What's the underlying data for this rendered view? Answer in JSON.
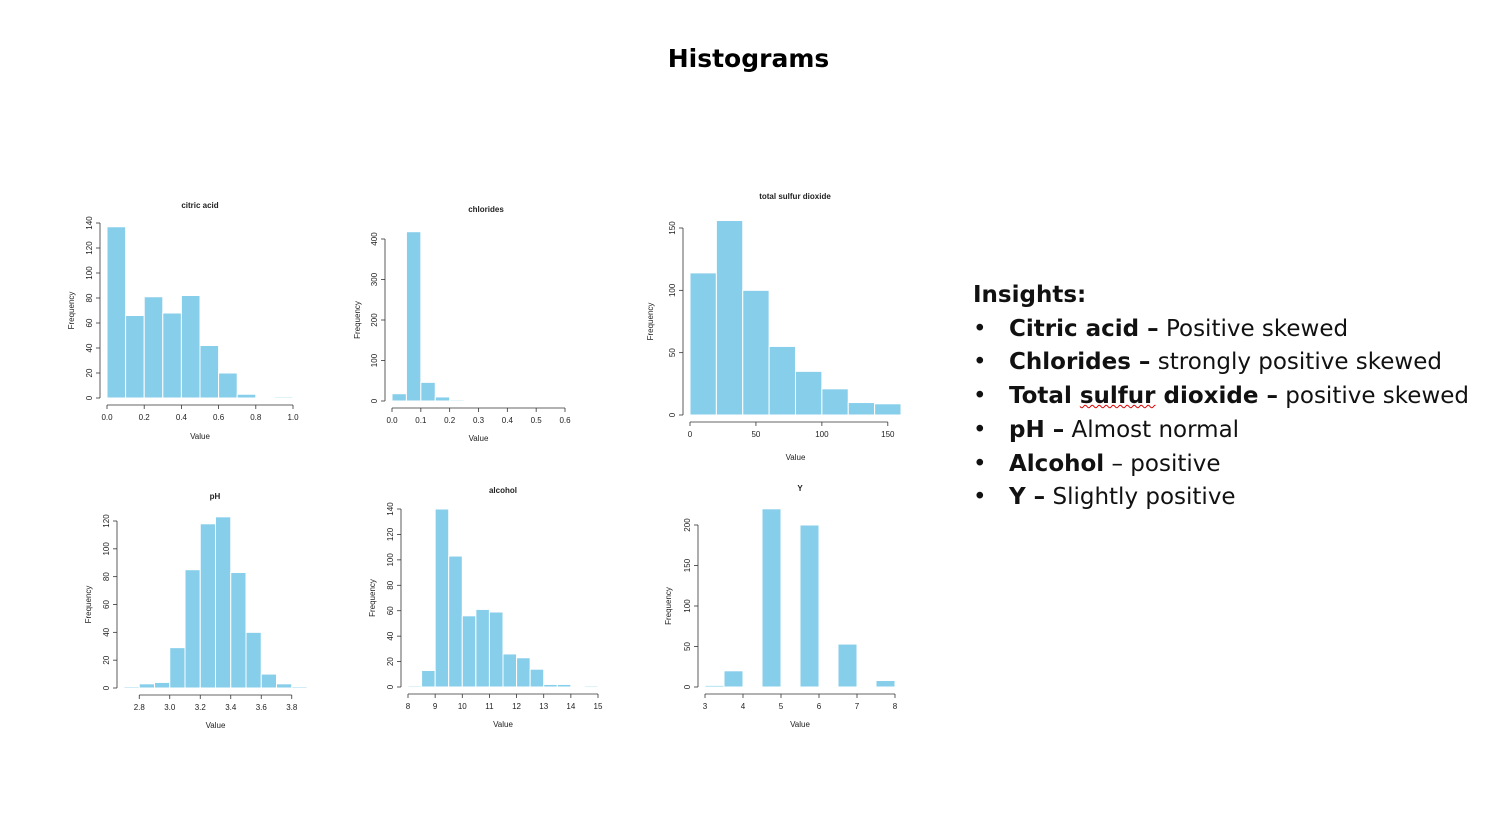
{
  "slide": {
    "title": "Histograms"
  },
  "chart_style": {
    "bar_color": "#87CEEB",
    "bar_edge": "#ffffff",
    "axis_color": "#333333"
  },
  "chart_data": [
    {
      "type": "bar",
      "title": "citric acid",
      "xlabel": "Value",
      "ylabel": "Frequency",
      "bins": [
        [
          0,
          0.1
        ],
        [
          0.1,
          0.2
        ],
        [
          0.2,
          0.3
        ],
        [
          0.3,
          0.4
        ],
        [
          0.4,
          0.5
        ],
        [
          0.5,
          0.6
        ],
        [
          0.6,
          0.7
        ],
        [
          0.7,
          0.8
        ],
        [
          0.8,
          0.9
        ],
        [
          0.9,
          1.0
        ]
      ],
      "values": [
        137,
        66,
        81,
        68,
        82,
        42,
        20,
        3,
        0,
        1
      ],
      "xlim": [
        0,
        1
      ],
      "ylim": [
        0,
        140
      ],
      "xticks": [
        "0.0",
        "0.2",
        "0.4",
        "0.6",
        "0.8",
        "1.0"
      ],
      "yticks": [
        "0",
        "20",
        "40",
        "60",
        "80",
        "100",
        "120",
        "140"
      ]
    },
    {
      "type": "bar",
      "title": "chlorides",
      "xlabel": "Value",
      "ylabel": "Frequency",
      "bins": [
        [
          0,
          0.05
        ],
        [
          0.05,
          0.1
        ],
        [
          0.1,
          0.15
        ],
        [
          0.15,
          0.2
        ],
        [
          0.2,
          0.25
        ],
        [
          0.25,
          0.3
        ],
        [
          0.3,
          0.35
        ],
        [
          0.35,
          0.4
        ],
        [
          0.4,
          0.45
        ],
        [
          0.45,
          0.5
        ],
        [
          0.5,
          0.55
        ],
        [
          0.55,
          0.6
        ]
      ],
      "values": [
        18,
        418,
        46,
        10,
        3,
        0,
        1,
        0,
        0,
        0,
        0,
        0
      ],
      "xlim": [
        0,
        0.6
      ],
      "ylim": [
        0,
        400
      ],
      "xticks": [
        "0.0",
        "0.1",
        "0.2",
        "0.3",
        "0.4",
        "0.5",
        "0.6"
      ],
      "yticks": [
        "0",
        "100",
        "200",
        "300",
        "400"
      ]
    },
    {
      "type": "bar",
      "title": "total sulfur dioxide",
      "xlabel": "Value",
      "ylabel": "Frequency",
      "bins": [
        [
          0,
          20
        ],
        [
          20,
          40
        ],
        [
          40,
          60
        ],
        [
          60,
          80
        ],
        [
          80,
          100
        ],
        [
          100,
          120
        ],
        [
          120,
          140
        ],
        [
          140,
          160
        ]
      ],
      "values": [
        114,
        156,
        100,
        55,
        35,
        21,
        10,
        9
      ],
      "xlim": [
        0,
        160
      ],
      "ylim": [
        0,
        150
      ],
      "xticks": [
        "0",
        "50",
        "100",
        "150"
      ],
      "yticks": [
        "0",
        "50",
        "100",
        "150"
      ]
    },
    {
      "type": "bar",
      "title": "pH",
      "xlabel": "Value",
      "ylabel": "Frequency",
      "bins": [
        [
          2.7,
          2.8
        ],
        [
          2.8,
          2.9
        ],
        [
          2.9,
          3.0
        ],
        [
          3.0,
          3.1
        ],
        [
          3.1,
          3.2
        ],
        [
          3.2,
          3.3
        ],
        [
          3.3,
          3.4
        ],
        [
          3.4,
          3.5
        ],
        [
          3.5,
          3.6
        ],
        [
          3.6,
          3.7
        ],
        [
          3.7,
          3.8
        ],
        [
          3.8,
          3.9
        ]
      ],
      "values": [
        1,
        3,
        4,
        29,
        85,
        118,
        123,
        83,
        40,
        10,
        3,
        1
      ],
      "xlim": [
        2.7,
        3.9
      ],
      "ylim": [
        0,
        120
      ],
      "xticks": [
        "2.8",
        "3.0",
        "3.2",
        "3.4",
        "3.6",
        "3.8"
      ],
      "yticks": [
        "0",
        "20",
        "40",
        "60",
        "80",
        "100",
        "120"
      ]
    },
    {
      "type": "bar",
      "title": "alcohol",
      "xlabel": "Value",
      "ylabel": "Frequency",
      "bins": [
        [
          8,
          8.5
        ],
        [
          8.5,
          9
        ],
        [
          9,
          9.5
        ],
        [
          9.5,
          10
        ],
        [
          10,
          10.5
        ],
        [
          10.5,
          11
        ],
        [
          11,
          11.5
        ],
        [
          11.5,
          12
        ],
        [
          12,
          12.5
        ],
        [
          12.5,
          13
        ],
        [
          13,
          13.5
        ],
        [
          13.5,
          14
        ],
        [
          14,
          14.5
        ],
        [
          14.5,
          15
        ]
      ],
      "values": [
        1,
        13,
        140,
        103,
        56,
        61,
        59,
        26,
        23,
        14,
        2,
        2,
        0,
        1
      ],
      "xlim": [
        8,
        15
      ],
      "ylim": [
        0,
        140
      ],
      "xticks": [
        "8",
        "9",
        "10",
        "11",
        "12",
        "13",
        "14",
        "15"
      ],
      "yticks": [
        "0",
        "20",
        "40",
        "60",
        "80",
        "100",
        "120",
        "140"
      ]
    },
    {
      "type": "bar",
      "title": "Y",
      "xlabel": "Value",
      "ylabel": "Frequency",
      "bins": [
        [
          3,
          3.5
        ],
        [
          3.5,
          4
        ],
        [
          4,
          4.5
        ],
        [
          4.5,
          5
        ],
        [
          5,
          5.5
        ],
        [
          5.5,
          6
        ],
        [
          6,
          6.5
        ],
        [
          6.5,
          7
        ],
        [
          7,
          7.5
        ],
        [
          7.5,
          8
        ]
      ],
      "values": [
        2,
        20,
        0,
        220,
        0,
        200,
        0,
        53,
        0,
        8
      ],
      "xlim": [
        3,
        8
      ],
      "ylim": [
        0,
        200
      ],
      "xticks": [
        "3",
        "4",
        "5",
        "6",
        "7",
        "8"
      ],
      "yticks": [
        "0",
        "50",
        "100",
        "150",
        "200"
      ]
    }
  ],
  "insights": {
    "heading": "Insights:",
    "bullet": "•",
    "items": [
      {
        "term": "Citric acid –",
        "text": " Positive skewed"
      },
      {
        "term": "Chlorides –",
        "text": " strongly positive skewed"
      },
      {
        "term": "Total ",
        "term_flagged": "sulfur",
        "term_end": " dioxide –",
        "text": " positive skewed"
      },
      {
        "term": "pH –",
        "text": " Almost normal"
      },
      {
        "term": "Alcohol",
        "text": " – positive"
      },
      {
        "term": "Y –",
        "text": " Slightly positive"
      }
    ]
  }
}
